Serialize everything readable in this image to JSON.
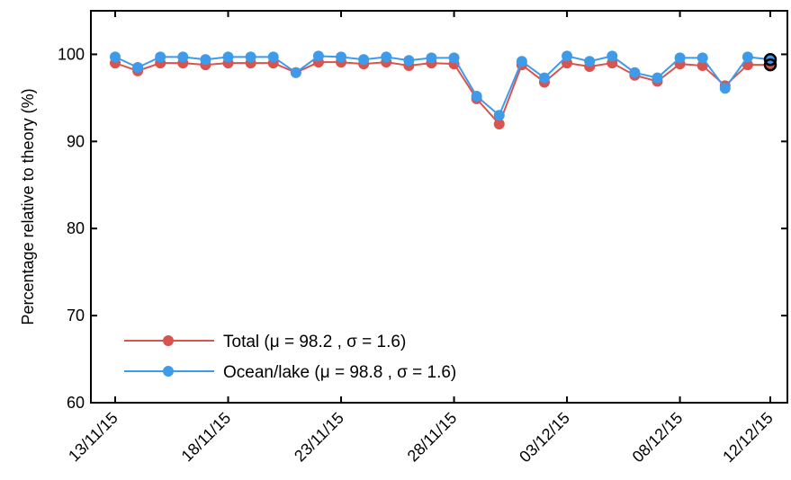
{
  "chart_data": {
    "type": "line",
    "ylabel": "Percentage relative to theory (%)",
    "xlabel": "",
    "title": "",
    "ylim": [
      60,
      105
    ],
    "yticks": [
      60,
      70,
      80,
      90,
      100
    ],
    "x_tick_labels": [
      "13/11/15",
      "18/11/15",
      "23/11/15",
      "28/11/15",
      "03/12/15",
      "08/12/15",
      "12/12/15"
    ],
    "x": [
      "13/11/15",
      "14/11/15",
      "15/11/15",
      "16/11/15",
      "17/11/15",
      "18/11/15",
      "19/11/15",
      "20/11/15",
      "21/11/15",
      "22/11/15",
      "23/11/15",
      "24/11/15",
      "25/11/15",
      "26/11/15",
      "27/11/15",
      "28/11/15",
      "29/11/15",
      "30/11/15",
      "01/12/15",
      "02/12/15",
      "03/12/15",
      "04/12/15",
      "05/12/15",
      "06/12/15",
      "07/12/15",
      "08/12/15",
      "09/12/15",
      "10/12/15",
      "11/12/15",
      "12/12/15"
    ],
    "series": [
      {
        "name": "Total (μ = 98.2 , σ = 1.6)",
        "color": "#d9534f",
        "values": [
          99.0,
          98.1,
          99.0,
          99.0,
          98.8,
          99.0,
          99.0,
          99.0,
          97.9,
          99.1,
          99.1,
          98.9,
          99.1,
          98.7,
          99.0,
          98.9,
          94.9,
          92.0,
          98.8,
          96.8,
          99.0,
          98.6,
          99.0,
          97.6,
          96.9,
          98.9,
          98.7,
          96.4,
          98.8,
          98.8
        ]
      },
      {
        "name": "Ocean/lake (μ = 98.8 , σ = 1.6)",
        "color": "#3d9be9",
        "values": [
          99.7,
          98.5,
          99.7,
          99.7,
          99.4,
          99.7,
          99.7,
          99.7,
          97.9,
          99.8,
          99.7,
          99.4,
          99.7,
          99.3,
          99.6,
          99.6,
          95.2,
          93.0,
          99.2,
          97.3,
          99.8,
          99.2,
          99.8,
          97.9,
          97.3,
          99.6,
          99.6,
          96.1,
          99.7,
          99.4
        ]
      }
    ],
    "legend_position": "bottom-left",
    "grid": false
  }
}
